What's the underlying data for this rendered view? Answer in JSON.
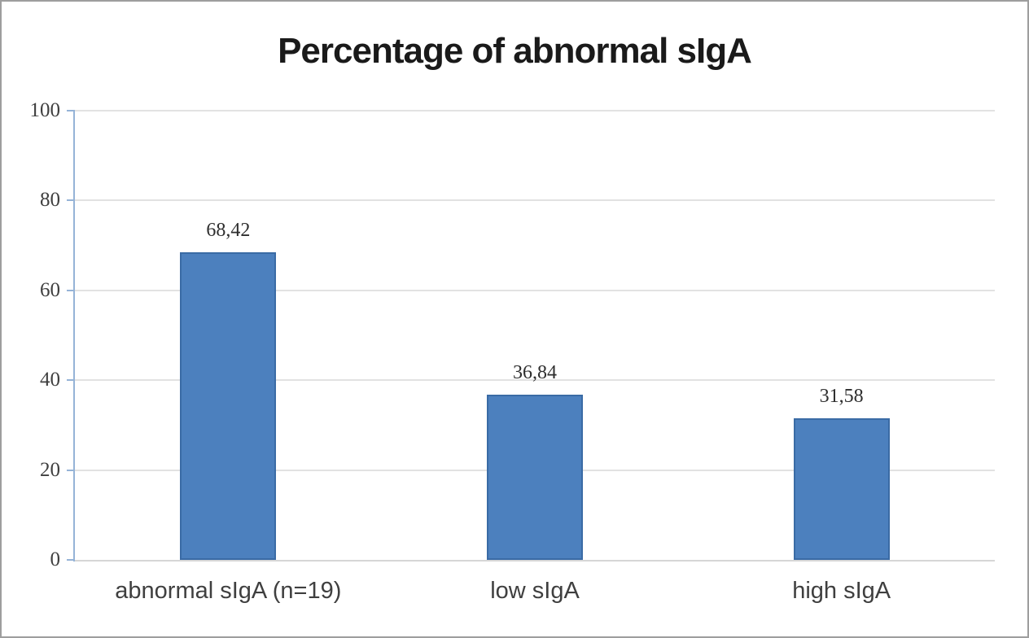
{
  "chart_data": {
    "type": "bar",
    "title": "Percentage of abnormal sIgA",
    "categories": [
      "abnormal sIgA (n=19)",
      "low sIgA",
      "high sIgA"
    ],
    "values": [
      68.42,
      36.84,
      31.58
    ],
    "value_labels": [
      "68,42",
      "36,84",
      "31,58"
    ],
    "xlabel": "",
    "ylabel": "",
    "ylim": [
      0,
      100
    ],
    "yticks": [
      0,
      20,
      40,
      60,
      80,
      100
    ],
    "grid": true,
    "legend": "none",
    "colors": {
      "bar_fill": "#4c80be",
      "bar_border": "#3a6ba5",
      "gridline": "#e2e2e2",
      "y_axis_line": "#95b3d7",
      "x_axis_line": "#d6d6d6",
      "tick_text": "#3f3f3f",
      "title_text": "#1a1a1a"
    }
  }
}
